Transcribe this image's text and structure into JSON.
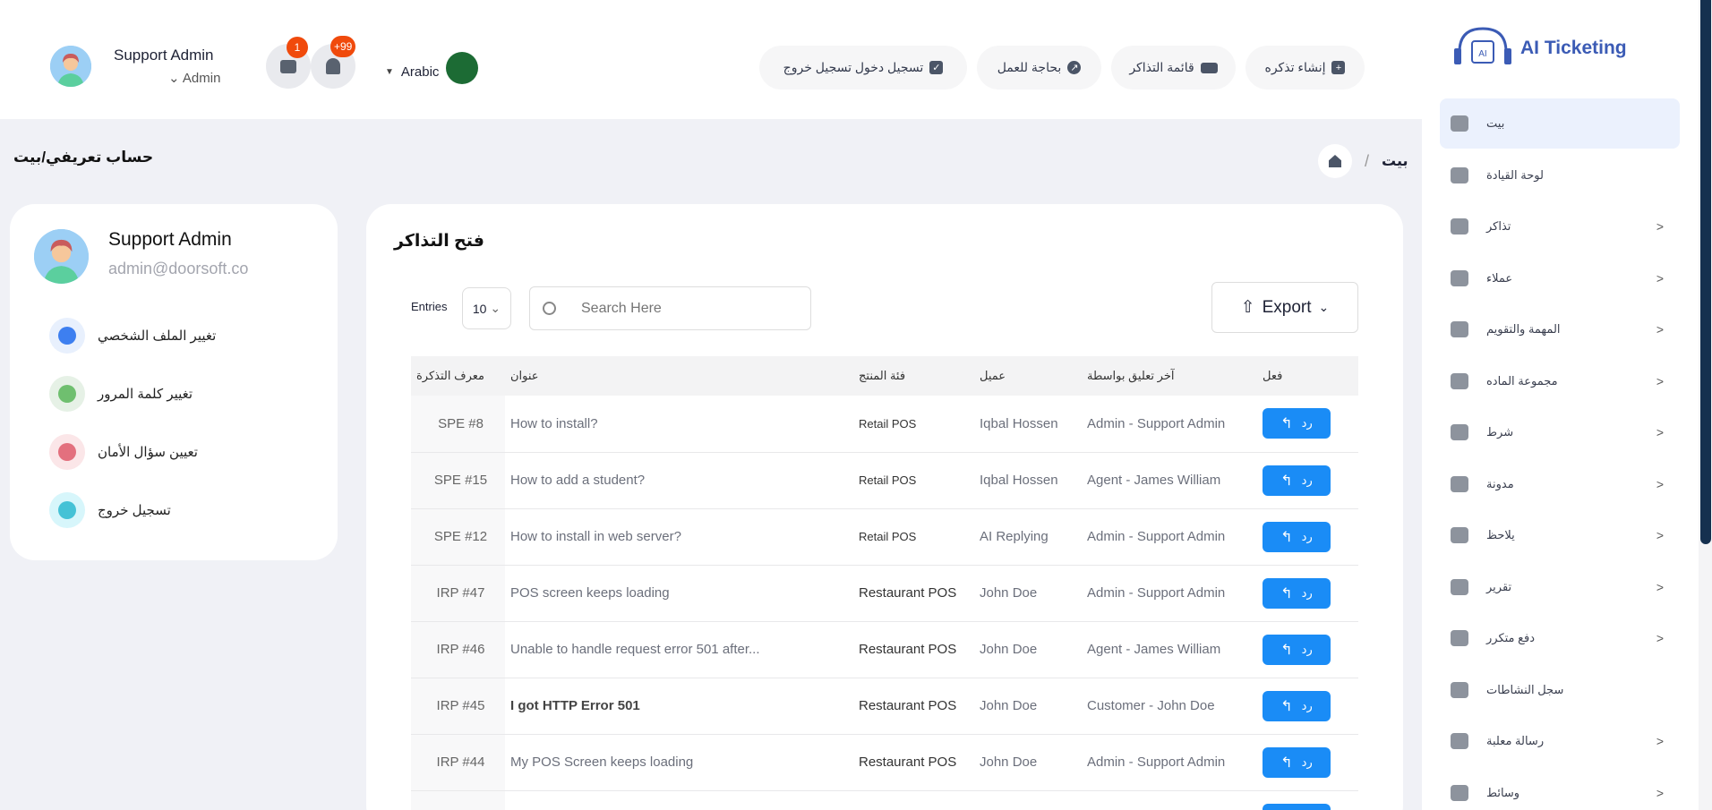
{
  "header": {
    "user_name": "Support Admin",
    "user_role": "Admin",
    "chat_badge": "1",
    "notif_badge": "+99",
    "language": "Arabic",
    "buttons": [
      {
        "label": "إنشاء تذكره",
        "icon": "plus-icon"
      },
      {
        "label": "قائمة التذاكر",
        "icon": "ticket-icon"
      },
      {
        "label": "بحاجة للعمل",
        "icon": "arrow-up-right-icon"
      },
      {
        "label": "تسجيل دخول تسجيل خروج",
        "icon": "clipboard-icon"
      }
    ]
  },
  "brand": {
    "name": "AI Ticketing",
    "color": "#3b5bb5"
  },
  "sidebar": {
    "items": [
      {
        "label": "بيت",
        "chevron": false,
        "active": true
      },
      {
        "label": "لوحة القيادة",
        "chevron": false
      },
      {
        "label": "تذاكر",
        "chevron": true
      },
      {
        "label": "عملاء",
        "chevron": true
      },
      {
        "label": "المهمة والتقويم",
        "chevron": true
      },
      {
        "label": "مجموعة الماده",
        "chevron": true
      },
      {
        "label": "شرط",
        "chevron": true
      },
      {
        "label": "مدونة",
        "chevron": true
      },
      {
        "label": "يلاحظ",
        "chevron": true
      },
      {
        "label": "تقرير",
        "chevron": true
      },
      {
        "label": "دفع متكرر",
        "chevron": true
      },
      {
        "label": "سجل النشاطات",
        "chevron": false
      },
      {
        "label": "رسالة معلبة",
        "chevron": true
      },
      {
        "label": "وسائط",
        "chevron": true
      }
    ]
  },
  "breadcrumb": {
    "page_title": "حساب تعريفي/بيت",
    "home": "بيت",
    "separator": "/"
  },
  "profile": {
    "name": "Support Admin",
    "email": "admin@doorsoft.co",
    "menu": [
      {
        "label": "تغيير الملف الشخصي",
        "icon": "user-icon"
      },
      {
        "label": "تغيير كلمة المرور",
        "icon": "key-icon"
      },
      {
        "label": "تعيين سؤال الأمان",
        "icon": "info-icon"
      },
      {
        "label": "تسجيل خروج",
        "icon": "logout-icon"
      }
    ]
  },
  "tickets": {
    "title": "فتح التذاكر",
    "entries_label": "Entries",
    "entries_value": "10",
    "search_placeholder": "Search Here",
    "export_label": "Export",
    "columns": [
      "معرف التذكرة",
      "عنوان",
      "فئة المنتج",
      "عميل",
      "آخر تعليق بواسطة",
      "فعل"
    ],
    "reply_label": "رد",
    "rows": [
      {
        "id": "SPE #8",
        "title": "How to install?",
        "category": "Retail POS",
        "customer": "Iqbal Hossen",
        "last": "Admin - Support Admin"
      },
      {
        "id": "SPE #15",
        "title": "How to add a student?",
        "category": "Retail POS",
        "customer": "Iqbal Hossen",
        "last": "Agent - James William"
      },
      {
        "id": "SPE #12",
        "title": "How to install in web server?",
        "category": "Retail POS",
        "customer": "AI Replying",
        "last": "Admin - Support Admin"
      },
      {
        "id": "IRP #47",
        "title": "POS screen keeps loading",
        "category": "Restaurant POS",
        "customer": "John Doe",
        "last": "Admin - Support Admin"
      },
      {
        "id": "IRP #46",
        "title": "Unable to handle request error 501 after...",
        "category": "Restaurant POS",
        "customer": "John Doe",
        "last": "Agent - James William"
      },
      {
        "id": "IRP #45",
        "title": "I got HTTP Error 501",
        "category": "Restaurant POS",
        "customer": "John Doe",
        "last": "Customer - John Doe",
        "bold": true
      },
      {
        "id": "IRP #44",
        "title": "My POS Screen keeps loading",
        "category": "Restaurant POS",
        "customer": "John Doe",
        "last": "Admin - Support Admin"
      },
      {
        "id": "",
        "title": "",
        "category": "",
        "customer": "",
        "last": ""
      }
    ]
  }
}
